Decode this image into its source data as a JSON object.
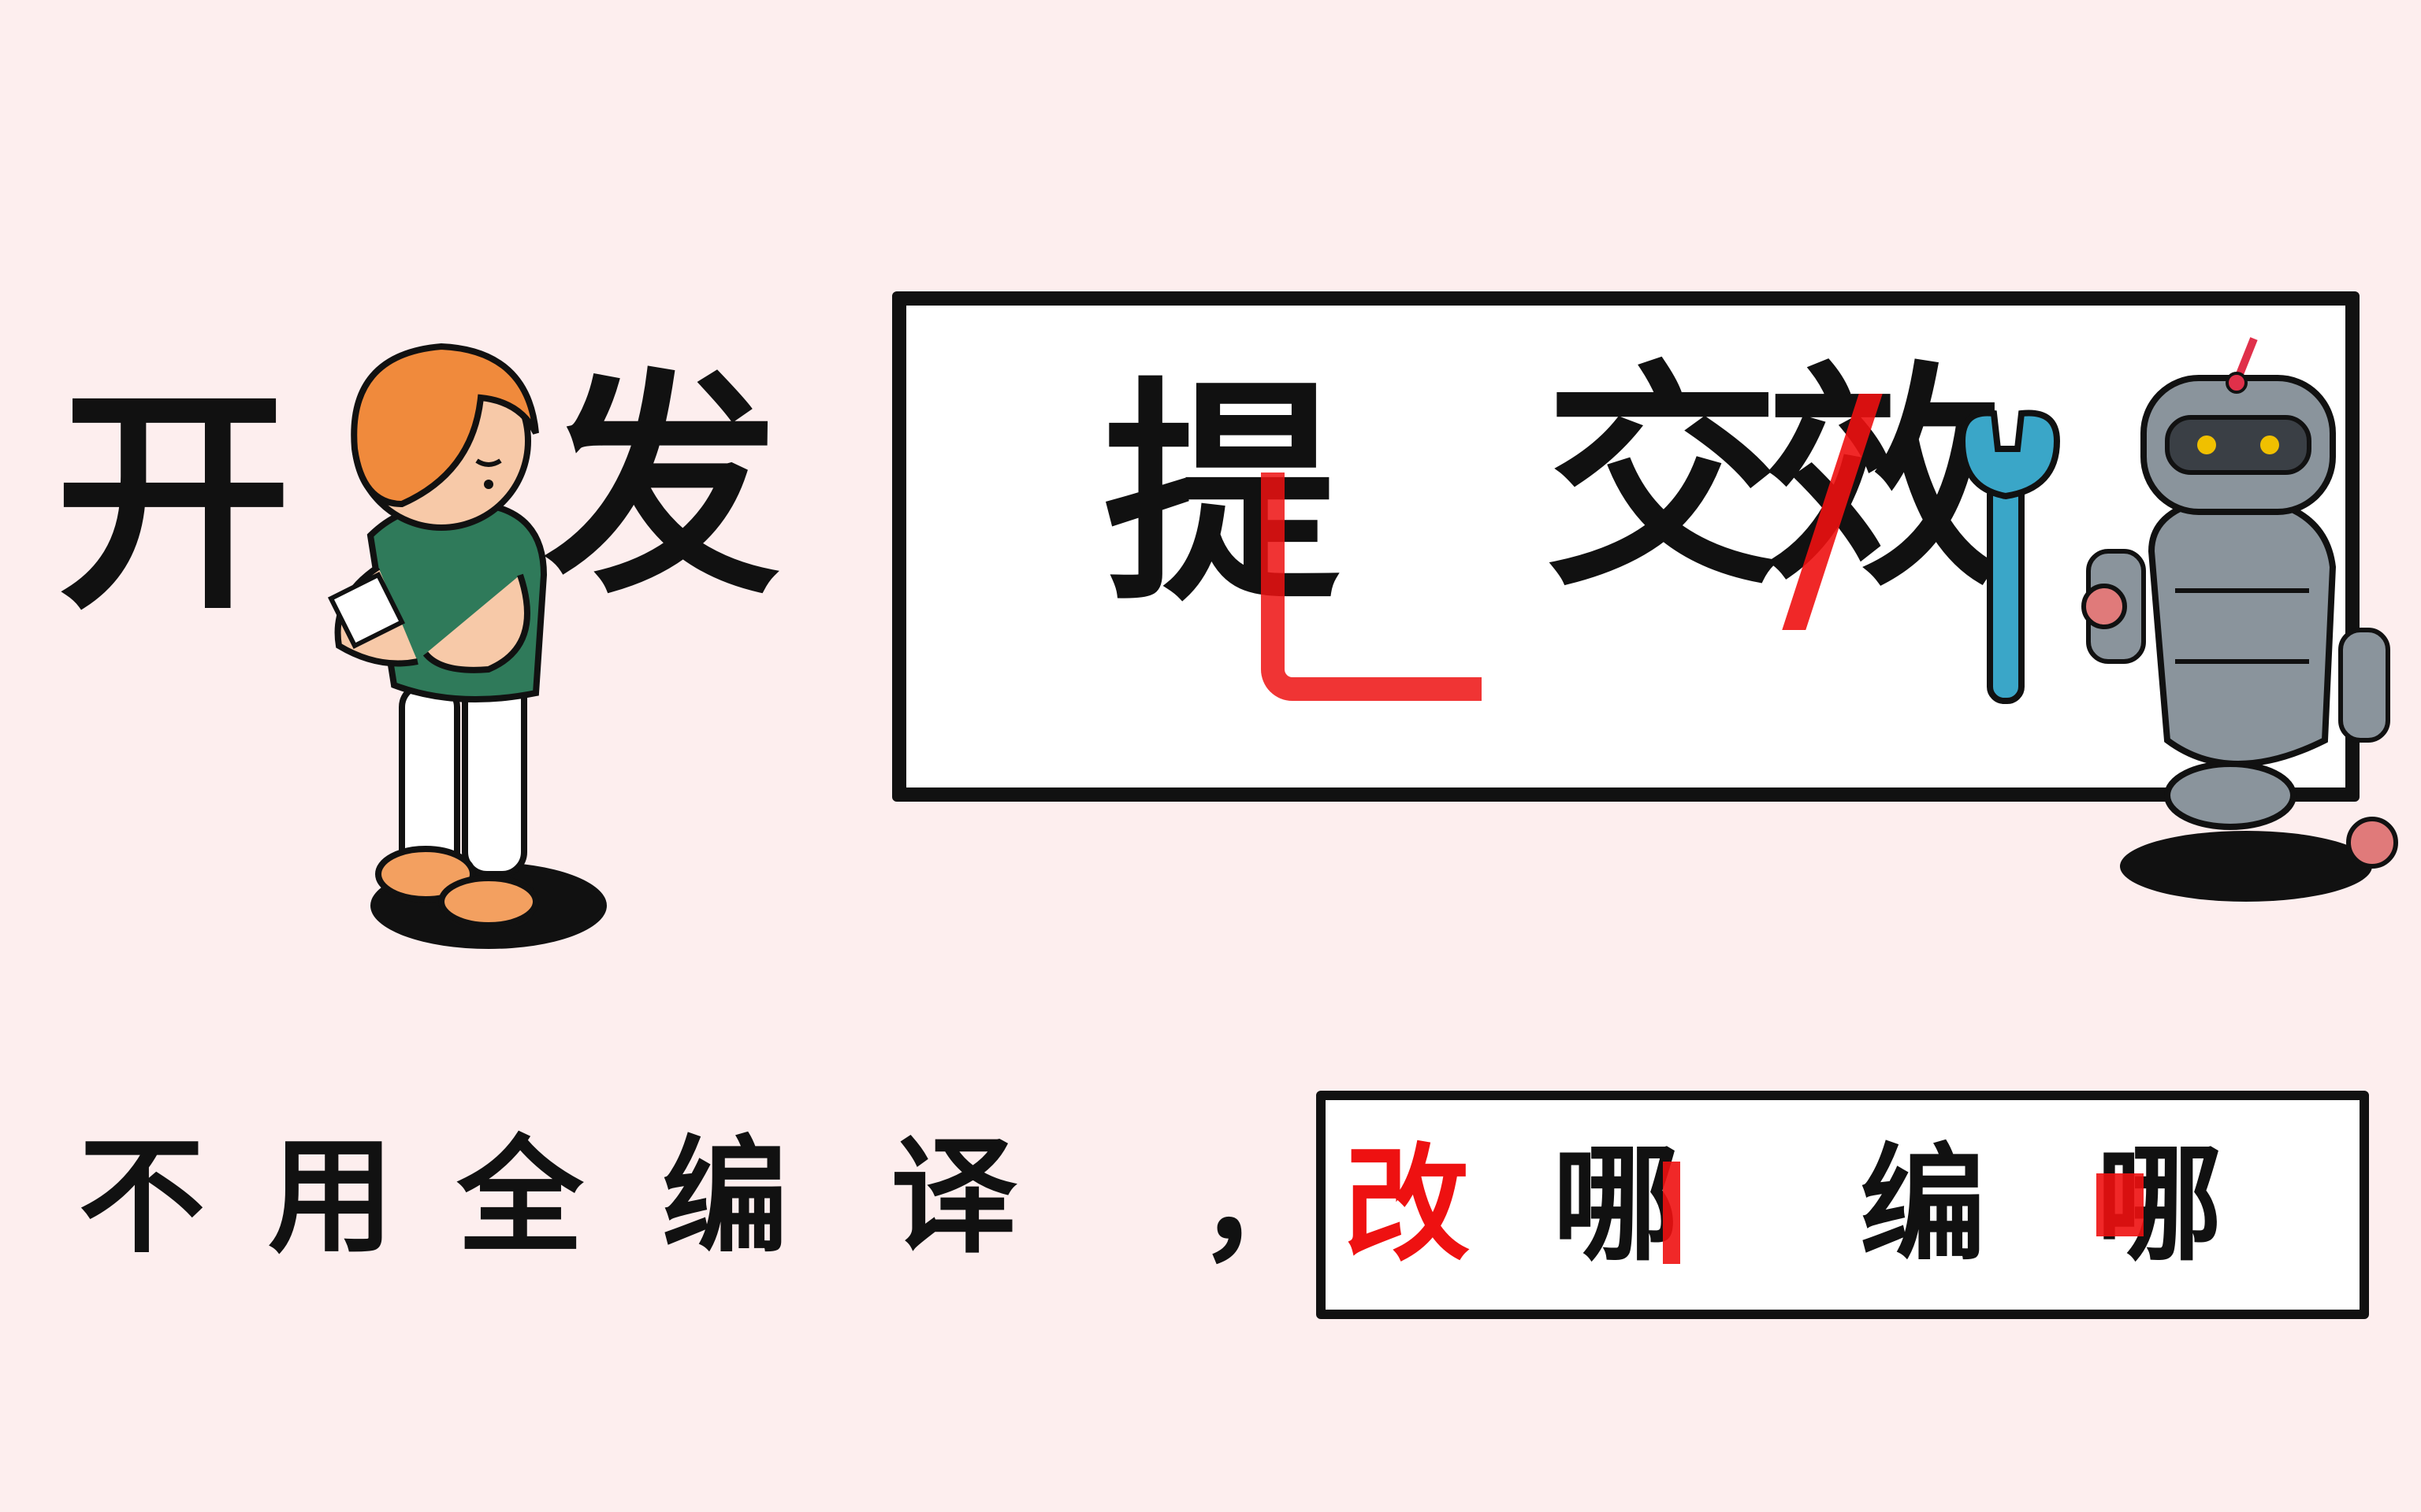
{
  "title_left": [
    "开",
    "发"
  ],
  "title_box": {
    "chars": [
      "提",
      "交",
      "效"
    ]
  },
  "subtitle_left": [
    "不",
    "用",
    "全",
    "编",
    "译",
    "，"
  ],
  "subtitle_box": {
    "chars": [
      "改",
      "哪",
      "编",
      "哪"
    ]
  },
  "colors": {
    "background": "#fdeeee",
    "ink": "#111111",
    "accent_red": "#ee1111",
    "girl_hair": "#f08a3c",
    "girl_shirt": "#2f7a5a",
    "robot_body": "#8a949c",
    "wrench": "#3aa6c8"
  },
  "icons": [
    "girl-character-illustration",
    "robot-character-illustration",
    "wrench-icon"
  ]
}
